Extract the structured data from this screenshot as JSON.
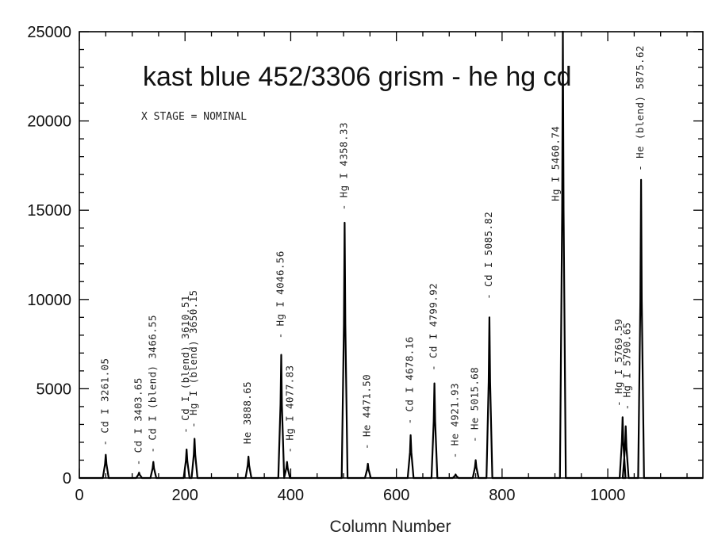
{
  "chart_data": {
    "type": "line",
    "title": "kast blue 452/3306 grism - he hg cd",
    "xlabel": "Column Number",
    "ylabel": "",
    "xlim": [
      0,
      1180
    ],
    "ylim": [
      0,
      25000
    ],
    "xticks": [
      0,
      200,
      400,
      600,
      800,
      1000
    ],
    "yticks": [
      0,
      5000,
      10000,
      15000,
      20000,
      25000
    ],
    "grid": false,
    "annotation": "X STAGE = NOMINAL",
    "series": [
      {
        "values": [
          {
            "x": 50,
            "y": 1300
          },
          {
            "x": 113,
            "y": 300
          },
          {
            "x": 140,
            "y": 900
          },
          {
            "x": 203,
            "y": 1600
          },
          {
            "x": 218,
            "y": 2200
          },
          {
            "x": 320,
            "y": 1200
          },
          {
            "x": 382,
            "y": 6900
          },
          {
            "x": 393,
            "y": 900
          },
          {
            "x": 502,
            "y": 14300
          },
          {
            "x": 546,
            "y": 800
          },
          {
            "x": 627,
            "y": 2400
          },
          {
            "x": 672,
            "y": 5300
          },
          {
            "x": 712,
            "y": 200
          },
          {
            "x": 750,
            "y": 1000
          },
          {
            "x": 776,
            "y": 9000
          },
          {
            "x": 915,
            "y": 25000
          },
          {
            "x": 1028,
            "y": 3400
          },
          {
            "x": 1034,
            "y": 2900
          },
          {
            "x": 1063,
            "y": 16700
          }
        ]
      }
    ],
    "line_labels": [
      {
        "x": 50,
        "text": "- Cd I 3261.05",
        "y_start": 1800
      },
      {
        "x": 113,
        "text": "- Cd I 3403.65",
        "y_start": 700
      },
      {
        "x": 140,
        "text": "- Cd I (blend) 3466.55",
        "y_start": 1400
      },
      {
        "x": 203,
        "text": "- Cd I (blend) 3610.51",
        "y_start": 2500
      },
      {
        "x": 218,
        "text": "- Hg I (blend) 3650.15",
        "y_start": 2800
      },
      {
        "x": 320,
        "text": "He 3888.65",
        "y_start": 1900
      },
      {
        "x": 382,
        "text": "- Hg I 4046.56",
        "y_start": 7800
      },
      {
        "x": 400,
        "text": "- Hg I 4077.83",
        "y_start": 1400
      },
      {
        "x": 502,
        "text": "- Hg I 4358.33",
        "y_start": 15000
      },
      {
        "x": 546,
        "text": "- He 4471.50",
        "y_start": 1600
      },
      {
        "x": 627,
        "text": "- Cd I 4678.16",
        "y_start": 3000
      },
      {
        "x": 672,
        "text": "- Cd I 4799.92",
        "y_start": 6000
      },
      {
        "x": 712,
        "text": "- He 4921.93",
        "y_start": 1100
      },
      {
        "x": 750,
        "text": "- He 5015.68",
        "y_start": 2000
      },
      {
        "x": 776,
        "text": "- Cd I 5085.82",
        "y_start": 10000
      },
      {
        "x": 903,
        "text": "Hg I 5460.74",
        "y_start": 15500
      },
      {
        "x": 1022,
        "text": "- Hg I 5769.59",
        "y_start": 4000
      },
      {
        "x": 1038,
        "text": "- Hg I 5790.65",
        "y_start": 3800
      },
      {
        "x": 1063,
        "text": "- He (blend) 5875.62",
        "y_start": 17200
      }
    ]
  }
}
